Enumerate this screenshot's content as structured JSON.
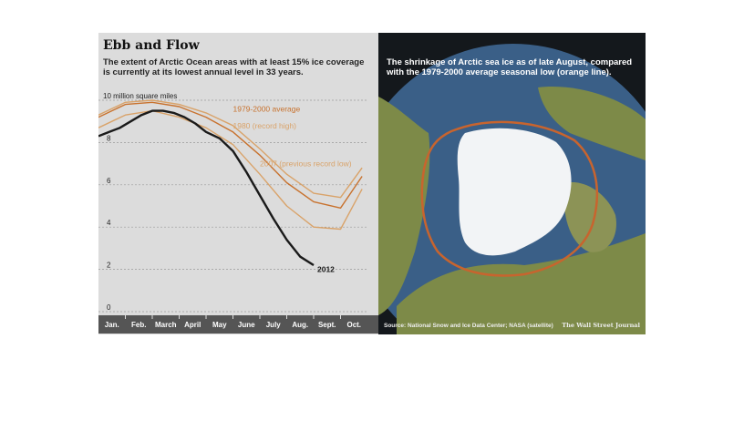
{
  "chart_data": {
    "type": "line",
    "title": "Ebb and Flow",
    "subtitle": "The extent of Arctic Ocean areas with at least 15% ice coverage is currently at its lowest annual level in 33 years.",
    "ylabel": "10 million square miles",
    "ylim": [
      0,
      10
    ],
    "yticks": [
      0,
      2,
      4,
      6,
      8
    ],
    "categories": [
      "Jan.",
      "Feb.",
      "March",
      "April",
      "May",
      "June",
      "July",
      "Aug.",
      "Sept.",
      "Oct."
    ],
    "xlim": [
      0,
      10
    ],
    "grid": true,
    "series": [
      {
        "name": "1979-2000 average",
        "color": "#c8722e",
        "x": [
          0,
          1,
          2,
          3,
          4,
          5,
          6,
          7,
          8,
          9,
          9.8
        ],
        "values": [
          9.2,
          9.8,
          9.9,
          9.7,
          9.2,
          8.5,
          7.4,
          6.1,
          5.2,
          4.9,
          6.4
        ]
      },
      {
        "name": "1980 (record high)",
        "color": "#d9a36a",
        "x": [
          0,
          1,
          2,
          3,
          4,
          5,
          6,
          7,
          8,
          9,
          9.8
        ],
        "values": [
          9.3,
          9.9,
          10.0,
          9.8,
          9.4,
          8.8,
          7.7,
          6.5,
          5.6,
          5.4,
          6.8
        ]
      },
      {
        "name": "2007 (previous record low)",
        "color": "#d9a36a",
        "x": [
          0,
          1,
          2,
          3,
          4,
          5,
          6,
          7,
          8,
          9,
          9.8
        ],
        "values": [
          8.7,
          9.3,
          9.5,
          9.2,
          8.7,
          7.9,
          6.5,
          5.0,
          4.0,
          3.9,
          5.8
        ]
      },
      {
        "name": "2012",
        "color": "#1a1a1a",
        "x": [
          0,
          0.4,
          0.8,
          1.2,
          1.6,
          2,
          2.4,
          2.8,
          3.2,
          3.6,
          4,
          4.5,
          5,
          5.5,
          6,
          6.5,
          7,
          7.5,
          8
        ],
        "values": [
          8.3,
          8.5,
          8.7,
          9.0,
          9.3,
          9.5,
          9.5,
          9.4,
          9.2,
          8.9,
          8.5,
          8.2,
          7.6,
          6.6,
          5.5,
          4.4,
          3.4,
          2.6,
          2.2
        ]
      }
    ]
  },
  "map": {
    "caption": "The shrinkage of Arctic sea ice as of late August, compared with the 1979-2000 average seasonal low (orange line).",
    "source": "Source: National Snow and Ice Data Center; NASA (satellite)",
    "credit": "The Wall Street Journal",
    "colors": {
      "ocean": "#3a5f87",
      "ice": "#f2f4f6",
      "land": "#7d8a48",
      "average_line": "#c8642e"
    }
  },
  "colors": {
    "panel_bg": "#dcdcdc",
    "month_bar": "#555555"
  }
}
